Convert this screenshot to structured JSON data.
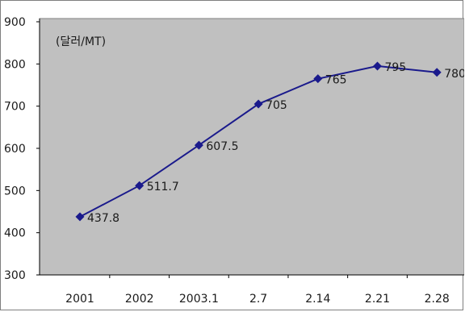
{
  "chart_data": {
    "type": "line",
    "title": "",
    "unit_label": "(달러/MT)",
    "xlabel": "",
    "ylabel": "",
    "categories": [
      "2001",
      "2002",
      "2003.1",
      "2.7",
      "2.14",
      "2.21",
      "2.28"
    ],
    "series": [
      {
        "values": [
          437.8,
          511.7,
          607.5,
          705,
          765,
          795,
          780
        ],
        "labels": [
          "437.8",
          "511.7",
          "607.5",
          "705",
          "765",
          "795",
          "780"
        ]
      }
    ],
    "ylim": [
      300,
      900
    ],
    "yticks": [
      300,
      400,
      500,
      600,
      700,
      800,
      900
    ],
    "grid": false,
    "legend": "none",
    "colors": {
      "plot_background": "#c0c0c0",
      "line": "#1a1a8c",
      "marker": "#1a1a8c",
      "axis": "#000000"
    }
  }
}
